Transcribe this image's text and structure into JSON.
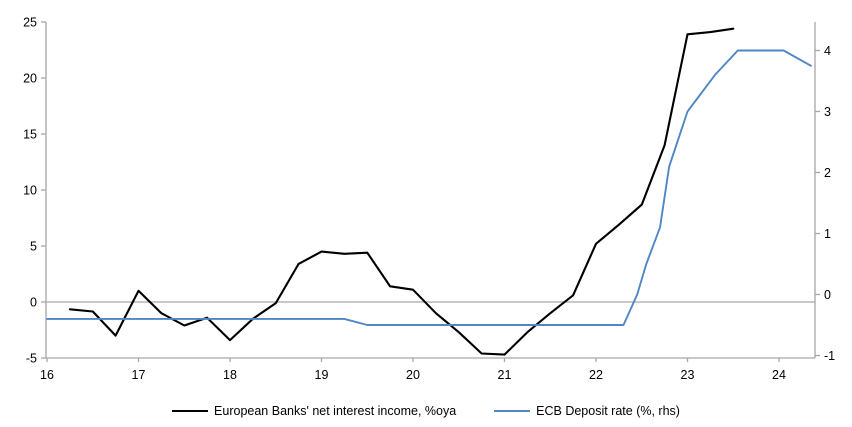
{
  "chart_data": {
    "type": "line",
    "title": "",
    "background": "#ffffff",
    "axis_color": "#a6a6a6",
    "grid": "zero-line-only",
    "legend_position": "bottom",
    "x_ticks": [
      16,
      17,
      18,
      19,
      20,
      21,
      22,
      23,
      24
    ],
    "left_axis": {
      "ticks": [
        25,
        20,
        15,
        10,
        5,
        0,
        -5
      ],
      "range": [
        -5,
        25
      ]
    },
    "right_axis": {
      "ticks": [
        4,
        3,
        2,
        1,
        0,
        -1
      ],
      "range": [
        -1.05,
        4.45
      ]
    },
    "series": [
      {
        "name": "European Banks' net interest income, %oya",
        "axis": "left",
        "color": "#000000",
        "points": [
          [
            16.25,
            -0.65
          ],
          [
            16.5,
            -0.85
          ],
          [
            16.75,
            -3.0
          ],
          [
            17.0,
            1.0
          ],
          [
            17.25,
            -1.0
          ],
          [
            17.5,
            -2.1
          ],
          [
            17.75,
            -1.4
          ],
          [
            18.0,
            -3.4
          ],
          [
            18.25,
            -1.5
          ],
          [
            18.5,
            -0.1
          ],
          [
            18.75,
            3.4
          ],
          [
            19.0,
            4.5
          ],
          [
            19.25,
            4.3
          ],
          [
            19.5,
            4.4
          ],
          [
            19.75,
            1.4
          ],
          [
            20.0,
            1.1
          ],
          [
            20.25,
            -1.0
          ],
          [
            20.5,
            -2.7
          ],
          [
            20.75,
            -4.6
          ],
          [
            21.0,
            -4.7
          ],
          [
            21.25,
            -2.7
          ],
          [
            21.5,
            -1.0
          ],
          [
            21.75,
            0.6
          ],
          [
            22.0,
            5.2
          ],
          [
            22.25,
            6.9
          ],
          [
            22.5,
            8.7
          ],
          [
            22.75,
            14.0
          ],
          [
            23.0,
            23.9
          ],
          [
            23.25,
            24.1
          ],
          [
            23.5,
            24.4
          ]
        ]
      },
      {
        "name": "ECB Deposit rate (%, rhs)",
        "axis": "right",
        "color": "#4f86c6",
        "points": [
          [
            16.0,
            -0.4
          ],
          [
            19.25,
            -0.4
          ],
          [
            19.5,
            -0.5
          ],
          [
            22.3,
            -0.5
          ],
          [
            22.45,
            0.0
          ],
          [
            22.55,
            0.5
          ],
          [
            22.7,
            1.1
          ],
          [
            22.8,
            2.1
          ],
          [
            23.0,
            3.0
          ],
          [
            23.3,
            3.6
          ],
          [
            23.55,
            4.0
          ],
          [
            24.05,
            4.0
          ],
          [
            24.35,
            3.75
          ]
        ]
      }
    ]
  }
}
